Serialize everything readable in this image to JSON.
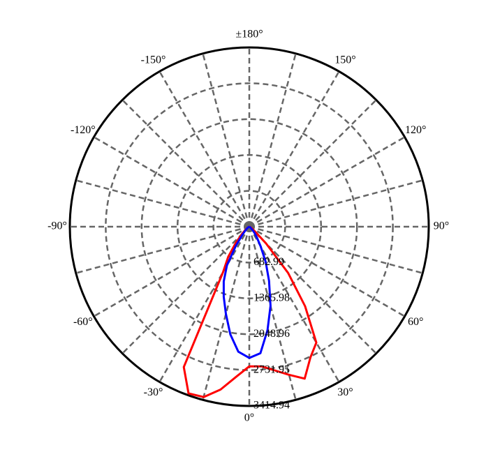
{
  "chart_data": {
    "type": "polar",
    "x": [
      -90,
      -80,
      -70,
      -60,
      -55,
      -50,
      -45,
      -40,
      -35,
      -30,
      -25,
      -20,
      -15,
      -10,
      -5,
      0,
      5,
      10,
      15,
      20,
      25,
      30,
      35,
      40,
      45,
      50,
      55,
      60,
      70,
      80,
      90
    ],
    "series": [
      {
        "color": "#ff0000",
        "values": [
          0,
          0,
          10,
          30,
          60,
          100,
          200,
          400,
          700,
          1000,
          2950,
          3380,
          3360,
          3150,
          2870,
          2660,
          2670,
          2780,
          2920,
          3080,
          2750,
          2550,
          1850,
          1150,
          450,
          150,
          80,
          40,
          10,
          0,
          0
        ]
      },
      {
        "color": "#0000ff",
        "values": [
          0,
          0,
          5,
          20,
          40,
          70,
          120,
          220,
          450,
          850,
          1150,
          1420,
          1720,
          2080,
          2390,
          2500,
          2420,
          2000,
          1560,
          1100,
          740,
          430,
          250,
          150,
          80,
          40,
          20,
          10,
          0,
          0,
          0
        ]
      }
    ],
    "rlim": [
      0,
      3414.94
    ],
    "rticks": [
      682.99,
      1365.98,
      2048.96,
      2731.95,
      3414.94
    ],
    "xticks": [
      {
        "value": 0,
        "label": "0°"
      },
      {
        "value": 30,
        "label": "30°"
      },
      {
        "value": 60,
        "label": "60°"
      },
      {
        "value": 90,
        "label": "90°"
      },
      {
        "value": 120,
        "label": "120°"
      },
      {
        "value": 150,
        "label": "150°"
      },
      {
        "value": 180,
        "label": "±180°"
      },
      {
        "value": -150,
        "label": "-150°"
      },
      {
        "value": -120,
        "label": "-120°"
      },
      {
        "value": -90,
        "label": "-90°"
      },
      {
        "value": -60,
        "label": "-60°"
      },
      {
        "value": -30,
        "label": "-30°"
      }
    ],
    "grid": true
  }
}
